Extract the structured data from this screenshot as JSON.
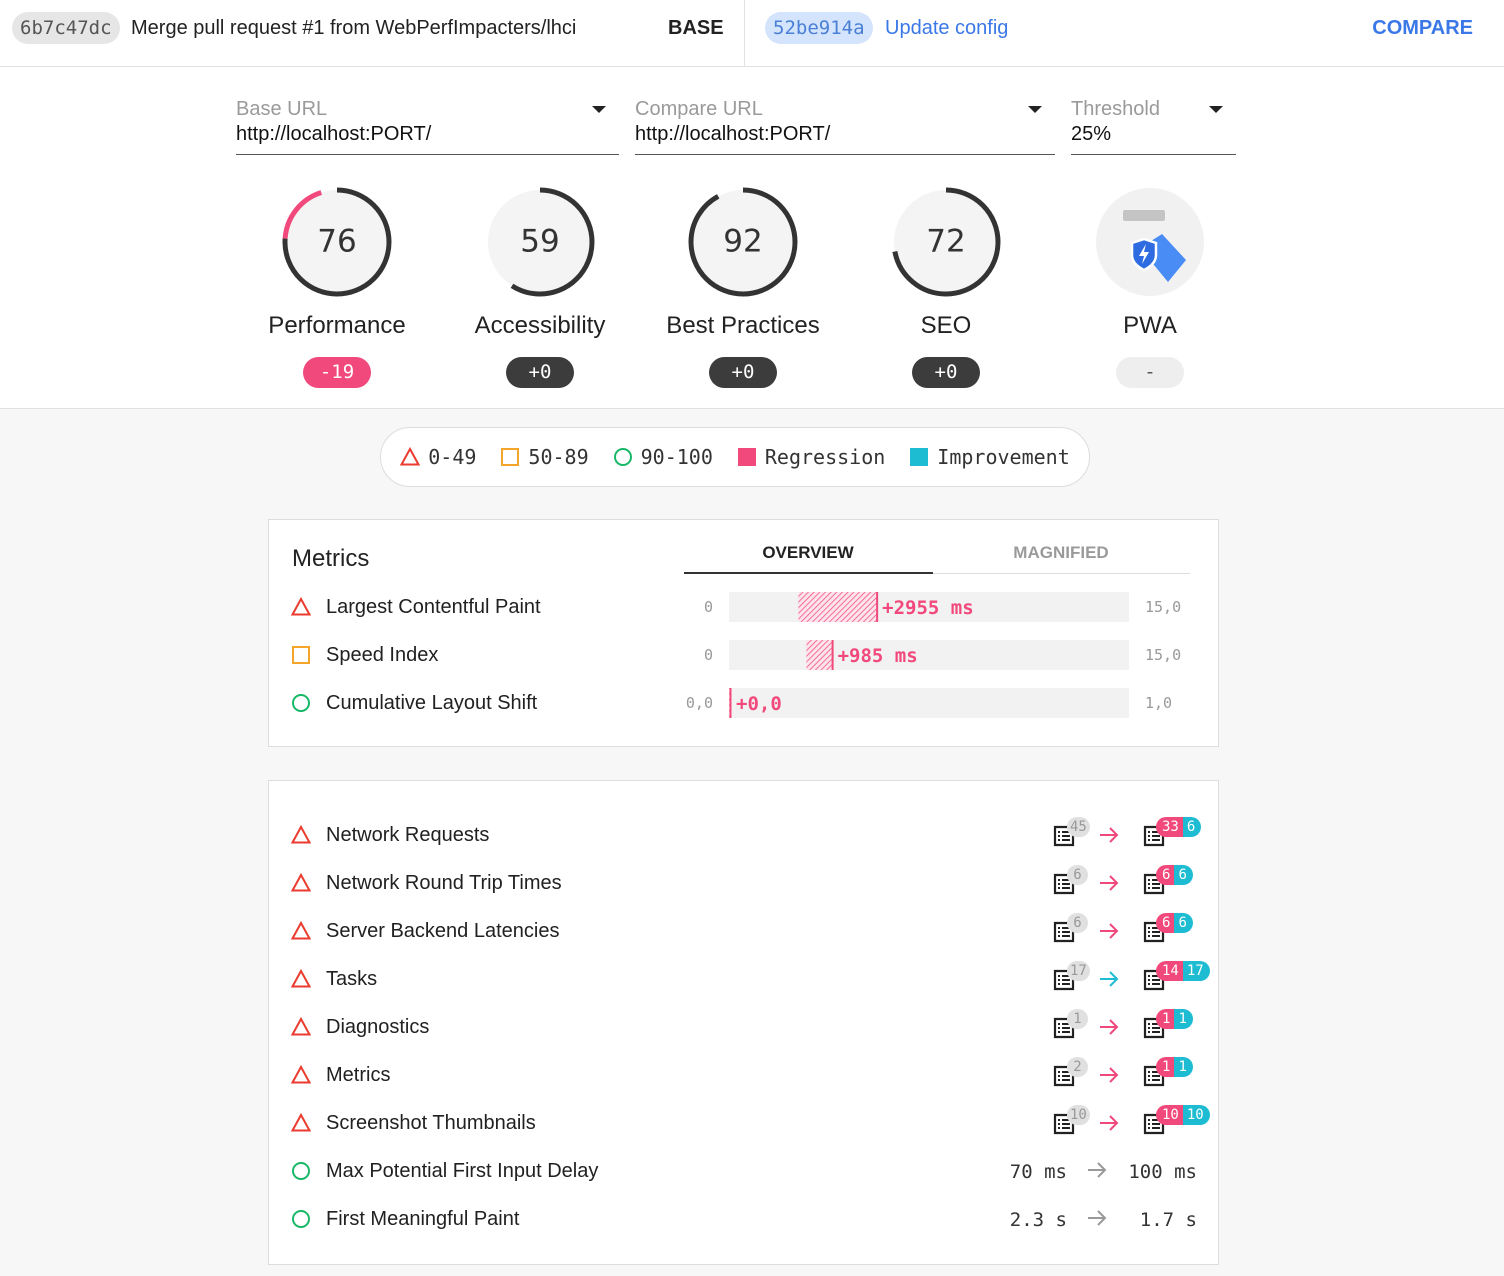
{
  "header": {
    "base": {
      "hash": "6b7c47dc",
      "message": "Merge pull request #1 from WebPerfImpacters/lhci",
      "label": "BASE"
    },
    "compare": {
      "hash": "52be914a",
      "message": "Update config",
      "label": "COMPARE"
    }
  },
  "selectors": [
    {
      "label": "Base URL",
      "value": "http://localhost:PORT/"
    },
    {
      "label": "Compare URL",
      "value": "http://localhost:PORT/"
    },
    {
      "label": "Threshold",
      "value": "25%"
    }
  ],
  "gauges": [
    {
      "label": "Performance",
      "score": 76,
      "delta": -19,
      "delta_label": "-19"
    },
    {
      "label": "Accessibility",
      "score": 59,
      "delta": 0,
      "delta_label": "+0"
    },
    {
      "label": "Best Practices",
      "score": 92,
      "delta": 0,
      "delta_label": "+0"
    },
    {
      "label": "SEO",
      "score": 72,
      "delta": 0,
      "delta_label": "+0"
    },
    {
      "label": "PWA",
      "delta_label": "-"
    }
  ],
  "legend": [
    {
      "label": "0-49",
      "icon": "fail"
    },
    {
      "label": "50-89",
      "icon": "average"
    },
    {
      "label": "90-100",
      "icon": "pass"
    },
    {
      "label": "Regression",
      "color": "#f2497c"
    },
    {
      "label": "Improvement",
      "color": "#1ebcd2"
    }
  ],
  "metrics": {
    "title": "Metrics",
    "tabs": [
      "OVERVIEW",
      "MAGNIFIED"
    ],
    "active_tab": 0,
    "rows": [
      {
        "name": "Largest Contentful Paint",
        "status": "fail",
        "axis": [
          {
            "value": 0,
            "label": "0"
          },
          {
            "value": 15000,
            "label": "15,0"
          }
        ],
        "base": 2600,
        "delta": 2955,
        "delta_label": "+2955 ms"
      },
      {
        "name": "Speed Index",
        "status": "average",
        "axis": [
          {
            "value": 0,
            "label": "0"
          },
          {
            "value": 15000,
            "label": "15,0"
          }
        ],
        "base": 2900,
        "delta": 985,
        "delta_label": "+985 ms"
      },
      {
        "name": "Cumulative Layout Shift",
        "status": "pass",
        "axis": [
          {
            "value": 0,
            "label": "0,0"
          },
          {
            "value": 1,
            "label": "1,0"
          }
        ],
        "base": 0,
        "delta": 0,
        "delta_label": "+0,0"
      }
    ]
  },
  "audits": [
    {
      "name": "Network Requests",
      "status": "fail",
      "base": 45,
      "regressions": 33,
      "improvements": 6,
      "trend": "regression"
    },
    {
      "name": "Network Round Trip Times",
      "status": "fail",
      "base": 6,
      "regressions": 6,
      "improvements": 6,
      "trend": "regression"
    },
    {
      "name": "Server Backend Latencies",
      "status": "fail",
      "base": 6,
      "regressions": 6,
      "improvements": 6,
      "trend": "regression"
    },
    {
      "name": "Tasks",
      "status": "fail",
      "base": 17,
      "regressions": 14,
      "improvements": 17,
      "trend": "improvement"
    },
    {
      "name": "Diagnostics",
      "status": "fail",
      "base": 1,
      "regressions": 1,
      "improvements": 1,
      "trend": "regression"
    },
    {
      "name": "Metrics",
      "status": "fail",
      "base": 2,
      "regressions": 1,
      "improvements": 1,
      "trend": "regression"
    },
    {
      "name": "Screenshot Thumbnails",
      "status": "fail",
      "base": 10,
      "regressions": 10,
      "improvements": 10,
      "trend": "regression"
    },
    {
      "name": "Max Potential First Input Delay",
      "status": "pass",
      "base": "70 ms",
      "compare": "100 ms"
    },
    {
      "name": "First Meaningful Paint",
      "status": "pass",
      "base": "2.3 s",
      "compare": "1.7 s"
    }
  ]
}
